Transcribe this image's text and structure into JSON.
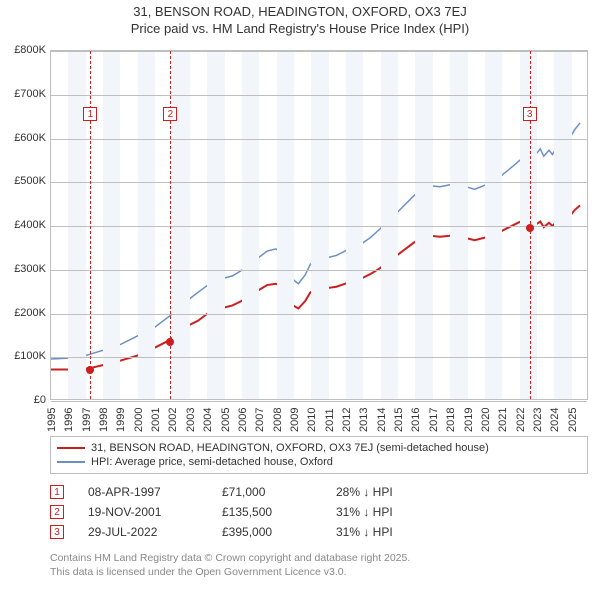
{
  "title": {
    "line1": "31, BENSON ROAD, HEADINGTON, OXFORD, OX3 7EJ",
    "line2": "Price paid vs. HM Land Registry's House Price Index (HPI)"
  },
  "chart": {
    "type": "line",
    "x_range": [
      1995,
      2026
    ],
    "y_range": [
      0,
      800000
    ],
    "background_color": "#ffffff",
    "band_color": "#f2f5f9",
    "grid_color": "#bfbfbf",
    "border_color": "#bfbfbf",
    "yticks": [
      {
        "v": 0,
        "label": "£0"
      },
      {
        "v": 100000,
        "label": "£100K"
      },
      {
        "v": 200000,
        "label": "£200K"
      },
      {
        "v": 300000,
        "label": "£300K"
      },
      {
        "v": 400000,
        "label": "£400K"
      },
      {
        "v": 500000,
        "label": "£500K"
      },
      {
        "v": 600000,
        "label": "£600K"
      },
      {
        "v": 700000,
        "label": "£700K"
      },
      {
        "v": 800000,
        "label": "£800K"
      }
    ],
    "xticks": [
      1995,
      1996,
      1997,
      1998,
      1999,
      2000,
      2001,
      2002,
      2003,
      2004,
      2005,
      2006,
      2007,
      2008,
      2009,
      2010,
      2011,
      2012,
      2013,
      2014,
      2015,
      2016,
      2017,
      2018,
      2019,
      2020,
      2021,
      2022,
      2023,
      2024,
      2025
    ],
    "series": [
      {
        "name": "property",
        "color": "#cc1f1f",
        "width": 2,
        "points": [
          [
            1995.0,
            68000
          ],
          [
            1996.0,
            68000
          ],
          [
            1997.0,
            70000
          ],
          [
            1997.27,
            71000
          ],
          [
            1998.0,
            78000
          ],
          [
            1999.0,
            88000
          ],
          [
            2000.0,
            100000
          ],
          [
            2001.0,
            118000
          ],
          [
            2001.5,
            128000
          ],
          [
            2001.88,
            135500
          ],
          [
            2002.0,
            140000
          ],
          [
            2002.5,
            158000
          ],
          [
            2003.0,
            170000
          ],
          [
            2003.5,
            180000
          ],
          [
            2004.0,
            195000
          ],
          [
            2004.5,
            205000
          ],
          [
            2005.0,
            210000
          ],
          [
            2005.5,
            215000
          ],
          [
            2006.0,
            225000
          ],
          [
            2006.5,
            238000
          ],
          [
            2007.0,
            250000
          ],
          [
            2007.5,
            262000
          ],
          [
            2008.0,
            265000
          ],
          [
            2008.3,
            260000
          ],
          [
            2008.7,
            235000
          ],
          [
            2009.0,
            215000
          ],
          [
            2009.3,
            208000
          ],
          [
            2009.7,
            225000
          ],
          [
            2010.0,
            245000
          ],
          [
            2010.5,
            255000
          ],
          [
            2011.0,
            255000
          ],
          [
            2011.5,
            258000
          ],
          [
            2012.0,
            265000
          ],
          [
            2012.5,
            272000
          ],
          [
            2013.0,
            278000
          ],
          [
            2013.5,
            288000
          ],
          [
            2014.0,
            300000
          ],
          [
            2014.5,
            315000
          ],
          [
            2015.0,
            330000
          ],
          [
            2015.5,
            345000
          ],
          [
            2016.0,
            360000
          ],
          [
            2016.5,
            370000
          ],
          [
            2017.0,
            375000
          ],
          [
            2017.5,
            373000
          ],
          [
            2018.0,
            375000
          ],
          [
            2018.5,
            378000
          ],
          [
            2019.0,
            370000
          ],
          [
            2019.5,
            365000
          ],
          [
            2020.0,
            370000
          ],
          [
            2020.5,
            375000
          ],
          [
            2021.0,
            385000
          ],
          [
            2021.5,
            395000
          ],
          [
            2022.0,
            405000
          ],
          [
            2022.3,
            410000
          ],
          [
            2022.58,
            395000
          ],
          [
            2023.0,
            400000
          ],
          [
            2023.3,
            408000
          ],
          [
            2023.5,
            395000
          ],
          [
            2023.8,
            405000
          ],
          [
            2024.0,
            398000
          ],
          [
            2024.3,
            410000
          ],
          [
            2024.5,
            418000
          ],
          [
            2024.8,
            425000
          ],
          [
            2025.0,
            420000
          ],
          [
            2025.3,
            435000
          ],
          [
            2025.6,
            445000
          ]
        ]
      },
      {
        "name": "hpi",
        "color": "#6a8fc5",
        "width": 1.5,
        "points": [
          [
            1995.0,
            92000
          ],
          [
            1996.0,
            94000
          ],
          [
            1997.0,
            100000
          ],
          [
            1998.0,
            112000
          ],
          [
            1999.0,
            125000
          ],
          [
            2000.0,
            145000
          ],
          [
            2001.0,
            165000
          ],
          [
            2002.0,
            195000
          ],
          [
            2002.5,
            215000
          ],
          [
            2003.0,
            230000
          ],
          [
            2003.5,
            245000
          ],
          [
            2004.0,
            260000
          ],
          [
            2004.5,
            272000
          ],
          [
            2005.0,
            278000
          ],
          [
            2005.5,
            283000
          ],
          [
            2006.0,
            295000
          ],
          [
            2006.5,
            310000
          ],
          [
            2007.0,
            325000
          ],
          [
            2007.5,
            340000
          ],
          [
            2008.0,
            345000
          ],
          [
            2008.3,
            338000
          ],
          [
            2008.7,
            305000
          ],
          [
            2009.0,
            275000
          ],
          [
            2009.3,
            265000
          ],
          [
            2009.7,
            285000
          ],
          [
            2010.0,
            310000
          ],
          [
            2010.5,
            325000
          ],
          [
            2011.0,
            325000
          ],
          [
            2011.5,
            330000
          ],
          [
            2012.0,
            340000
          ],
          [
            2012.5,
            350000
          ],
          [
            2013.0,
            358000
          ],
          [
            2013.5,
            372000
          ],
          [
            2014.0,
            390000
          ],
          [
            2014.5,
            410000
          ],
          [
            2015.0,
            428000
          ],
          [
            2015.5,
            448000
          ],
          [
            2016.0,
            468000
          ],
          [
            2016.5,
            482000
          ],
          [
            2017.0,
            490000
          ],
          [
            2017.5,
            488000
          ],
          [
            2018.0,
            492000
          ],
          [
            2018.5,
            496000
          ],
          [
            2019.0,
            488000
          ],
          [
            2019.5,
            482000
          ],
          [
            2020.0,
            490000
          ],
          [
            2020.5,
            498000
          ],
          [
            2021.0,
            512000
          ],
          [
            2021.5,
            528000
          ],
          [
            2022.0,
            545000
          ],
          [
            2022.3,
            555000
          ],
          [
            2022.58,
            572000
          ],
          [
            2023.0,
            560000
          ],
          [
            2023.3,
            575000
          ],
          [
            2023.5,
            558000
          ],
          [
            2023.8,
            572000
          ],
          [
            2024.0,
            562000
          ],
          [
            2024.3,
            582000
          ],
          [
            2024.5,
            595000
          ],
          [
            2024.8,
            608000
          ],
          [
            2025.0,
            600000
          ],
          [
            2025.3,
            620000
          ],
          [
            2025.6,
            635000
          ]
        ]
      }
    ],
    "markers": [
      {
        "n": "1",
        "year": 1997.27,
        "price": 71000,
        "color": "#cc1f1f",
        "box_top": 56
      },
      {
        "n": "2",
        "year": 2001.88,
        "price": 135500,
        "color": "#cc1f1f",
        "box_top": 56
      },
      {
        "n": "3",
        "year": 2022.58,
        "price": 395000,
        "color": "#cc1f1f",
        "box_top": 56
      }
    ]
  },
  "legend": {
    "items": [
      {
        "color": "#cc1f1f",
        "label": "31, BENSON ROAD, HEADINGTON, OXFORD, OX3 7EJ (semi-detached house)"
      },
      {
        "color": "#6a8fc5",
        "label": "HPI: Average price, semi-detached house, Oxford"
      }
    ]
  },
  "sales": [
    {
      "n": "1",
      "color": "#cc1f1f",
      "date": "08-APR-1997",
      "price": "£71,000",
      "delta": "28% ↓ HPI"
    },
    {
      "n": "2",
      "color": "#cc1f1f",
      "date": "19-NOV-2001",
      "price": "£135,500",
      "delta": "31% ↓ HPI"
    },
    {
      "n": "3",
      "color": "#cc1f1f",
      "date": "29-JUL-2022",
      "price": "£395,000",
      "delta": "31% ↓ HPI"
    }
  ],
  "footer": {
    "line1": "Contains HM Land Registry data © Crown copyright and database right 2025.",
    "line2": "This data is licensed under the Open Government Licence v3.0."
  }
}
